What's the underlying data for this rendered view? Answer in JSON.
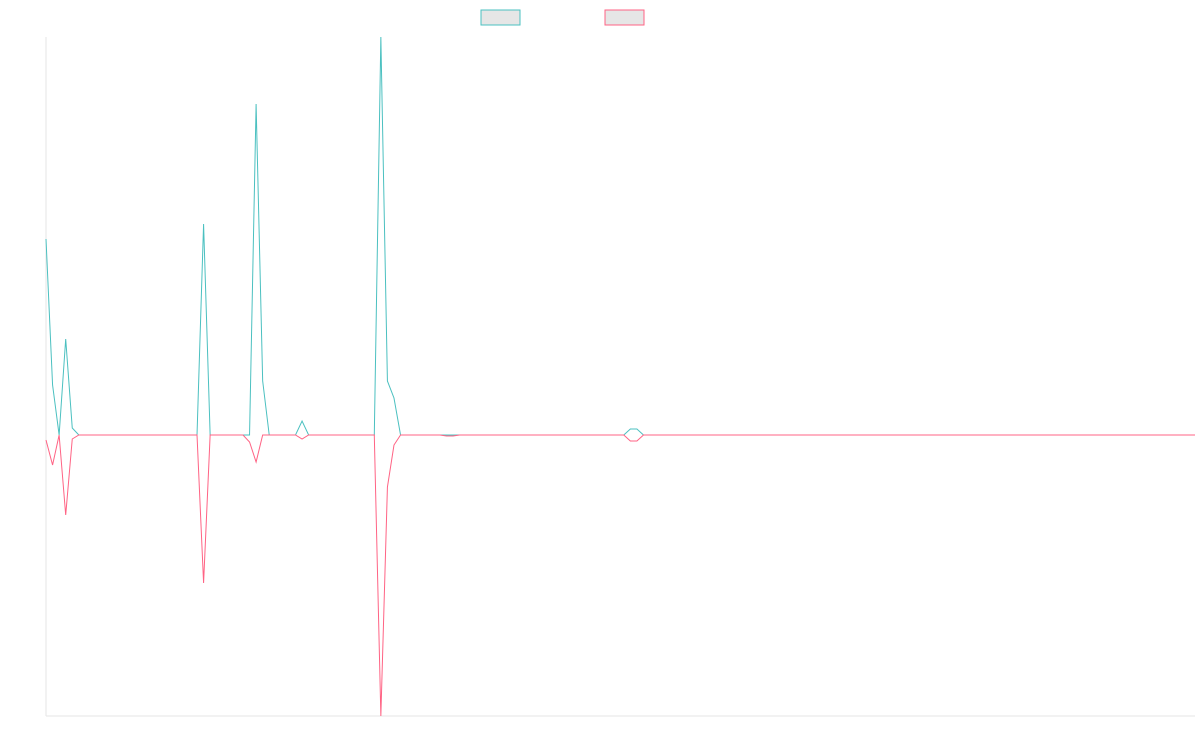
{
  "chart_data": {
    "type": "line",
    "ylim": [
      -281,
      398
    ],
    "series": [
      {
        "color": "#4bc0c0",
        "values": [
          196,
          50,
          0,
          96,
          7,
          0,
          0,
          0,
          0,
          0,
          0,
          0,
          0,
          0,
          0,
          0,
          0,
          0,
          0,
          0,
          0,
          0,
          0,
          0,
          211,
          0,
          0,
          0,
          0,
          0,
          0,
          0,
          331,
          54,
          0,
          0,
          0,
          0,
          0,
          14,
          0,
          0,
          0,
          0,
          0,
          0,
          0,
          0,
          0,
          0,
          0,
          398,
          54,
          37,
          0,
          0,
          0,
          0,
          0,
          0,
          0,
          0,
          0,
          0,
          0,
          0,
          0,
          0,
          0,
          0,
          0,
          0,
          0,
          0,
          0,
          0,
          0,
          0,
          0,
          0,
          0,
          0,
          0,
          0,
          0,
          0,
          0,
          0,
          0,
          6,
          6,
          0,
          0,
          0,
          0,
          0,
          0,
          0,
          0,
          0,
          0,
          0,
          0,
          0,
          0,
          0,
          0,
          0,
          0,
          0,
          0,
          0,
          0,
          0,
          0,
          0,
          0,
          0,
          0,
          0,
          0,
          0,
          0,
          0,
          0,
          0,
          0,
          0,
          0,
          0,
          0,
          0,
          0,
          0,
          0,
          0,
          0,
          0,
          0,
          0,
          0,
          0,
          0,
          0,
          0,
          0,
          0,
          0,
          0,
          0,
          0,
          0,
          0,
          0,
          0,
          0,
          0,
          0,
          0,
          0,
          0,
          0,
          0,
          0,
          0,
          0,
          0,
          0,
          0,
          0,
          0,
          0,
          0,
          0,
          0,
          0
        ]
      },
      {
        "color": "#ff6384",
        "values": [
          -5,
          -30,
          0,
          -80,
          -4,
          0,
          0,
          0,
          0,
          0,
          0,
          0,
          0,
          0,
          0,
          0,
          0,
          0,
          0,
          0,
          0,
          0,
          0,
          0,
          -148,
          0,
          0,
          0,
          0,
          0,
          0,
          -7,
          -27,
          0,
          0,
          0,
          0,
          0,
          0,
          -4,
          0,
          0,
          0,
          0,
          0,
          0,
          0,
          0,
          0,
          0,
          0,
          -281,
          -52,
          -10,
          0,
          0,
          0,
          0,
          0,
          0,
          0,
          -1,
          -1,
          0,
          0,
          0,
          0,
          0,
          0,
          0,
          0,
          0,
          0,
          0,
          0,
          0,
          0,
          0,
          0,
          0,
          0,
          0,
          0,
          0,
          0,
          0,
          0,
          0,
          0,
          -6,
          -6,
          0,
          0,
          0,
          0,
          0,
          0,
          0,
          0,
          0,
          0,
          0,
          0,
          0,
          0,
          0,
          0,
          0,
          0,
          0,
          0,
          0,
          0,
          0,
          0,
          0,
          0,
          0,
          0,
          0,
          0,
          0,
          0,
          0,
          0,
          0,
          0,
          0,
          0,
          0,
          0,
          0,
          0,
          0,
          0,
          0,
          0,
          0,
          0,
          0,
          0,
          0,
          0,
          0,
          0,
          0,
          0,
          0,
          0,
          0,
          0,
          0,
          0,
          0,
          0,
          0,
          0,
          0,
          0,
          0,
          0,
          0,
          0,
          0,
          0,
          0,
          0,
          0,
          0,
          0,
          0,
          0,
          0,
          0,
          0,
          0
        ]
      }
    ]
  }
}
